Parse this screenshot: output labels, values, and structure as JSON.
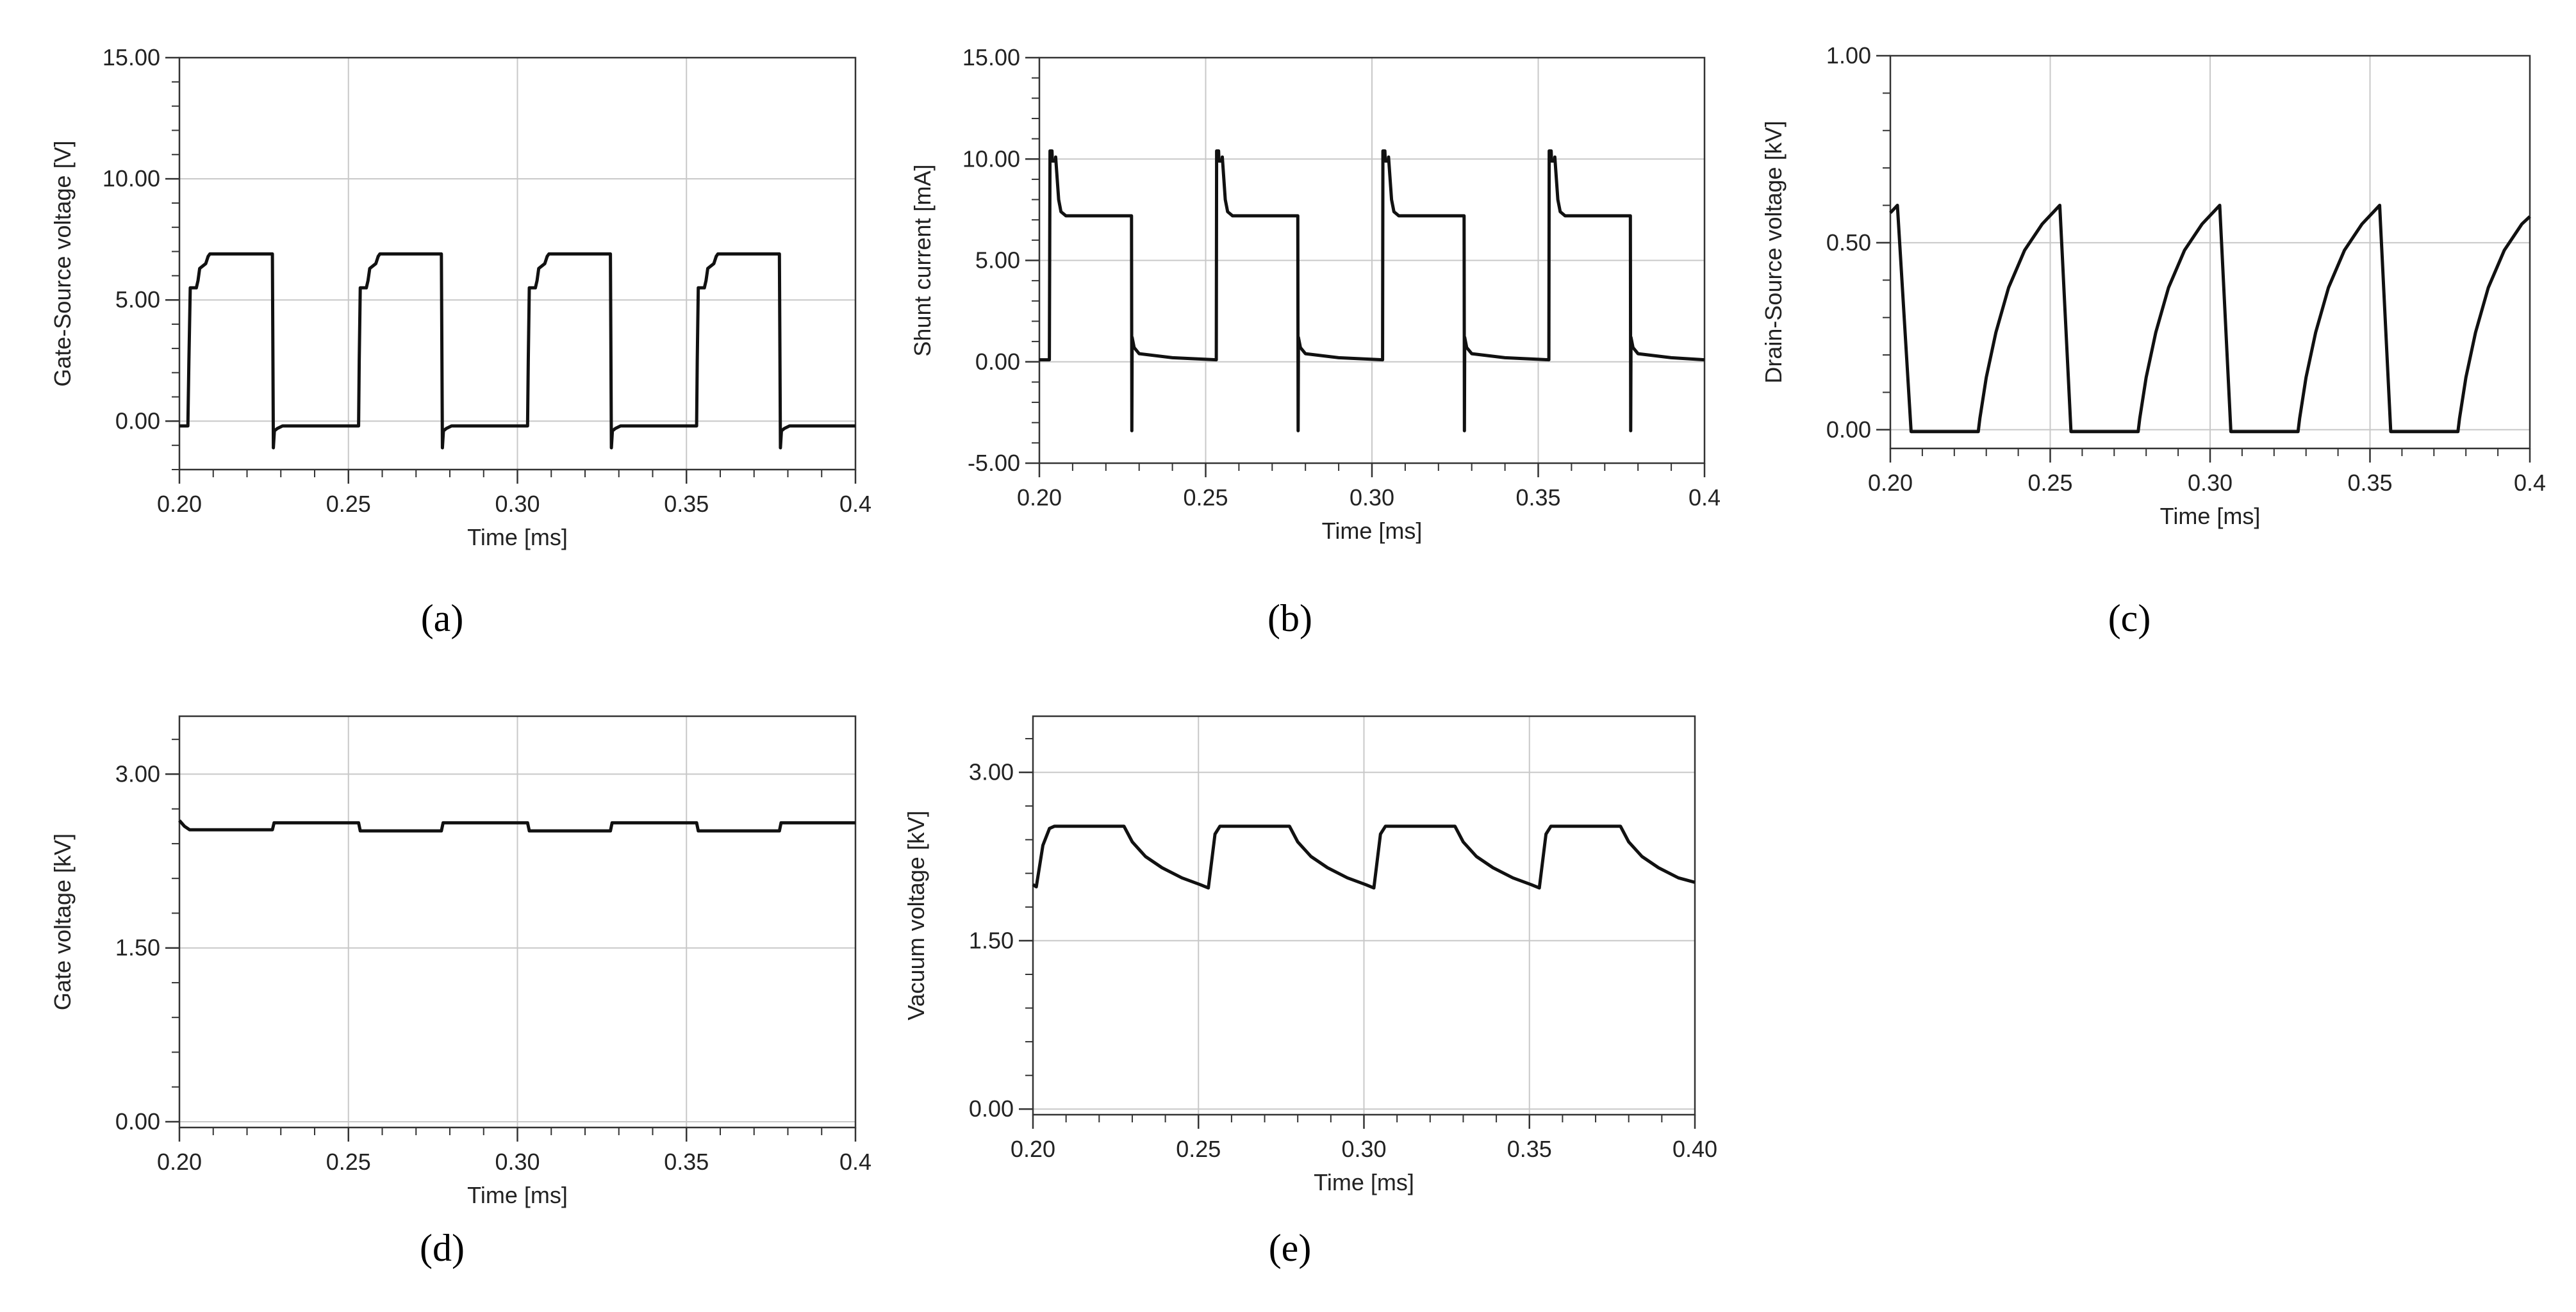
{
  "colors": {
    "trace": "#111111",
    "grid": "#c8c8c8",
    "frame": "#333333",
    "text": "#222222",
    "background": "#ffffff"
  },
  "chart_data": [
    {
      "id": "a",
      "type": "line",
      "panel_label": "(a)",
      "xlabel": "Time [ms]",
      "ylabel": "Gate-Source voltage [V]",
      "xlim": [
        0.2,
        0.4
      ],
      "ylim": [
        -2.0,
        15.0
      ],
      "x_ticks": [
        0.2,
        0.25,
        0.3,
        0.35,
        0.4
      ],
      "x_tick_labels": [
        "0.20",
        "0.25",
        "0.30",
        "0.35",
        "0.4"
      ],
      "y_ticks": [
        0.0,
        5.0,
        10.0,
        15.0
      ],
      "y_tick_labels": [
        "0.00",
        "5.00",
        "10.00",
        "15.00"
      ],
      "series": [
        {
          "name": "Gate-Source voltage",
          "x": [
            0.2,
            0.2025,
            0.2028,
            0.2032,
            0.205,
            0.2055,
            0.206,
            0.2078,
            0.2085,
            0.209,
            0.2275,
            0.2278,
            0.2281,
            0.229,
            0.2305,
            0.253,
            0.2532,
            0.2535,
            0.2553,
            0.2558,
            0.2563,
            0.2581,
            0.2588,
            0.2593,
            0.2775,
            0.2778,
            0.2781,
            0.279,
            0.2805,
            0.303,
            0.3032,
            0.3035,
            0.3053,
            0.3058,
            0.3063,
            0.3081,
            0.3088,
            0.3093,
            0.3275,
            0.3278,
            0.3281,
            0.329,
            0.3305,
            0.353,
            0.3532,
            0.3535,
            0.3553,
            0.3558,
            0.3563,
            0.3581,
            0.3588,
            0.3593,
            0.3775,
            0.3778,
            0.3781,
            0.379,
            0.3805,
            0.4
          ],
          "y": [
            -0.2,
            -0.2,
            2.5,
            5.5,
            5.5,
            5.8,
            6.3,
            6.5,
            6.8,
            6.9,
            6.9,
            -1.1,
            -0.4,
            -0.3,
            -0.2,
            -0.2,
            2.5,
            5.5,
            5.5,
            5.8,
            6.3,
            6.5,
            6.8,
            6.9,
            6.9,
            -1.1,
            -0.4,
            -0.3,
            -0.2,
            -0.2,
            2.5,
            5.5,
            5.5,
            5.8,
            6.3,
            6.5,
            6.8,
            6.9,
            6.9,
            -1.1,
            -0.4,
            -0.3,
            -0.2,
            -0.2,
            2.5,
            5.5,
            5.5,
            5.8,
            6.3,
            6.5,
            6.8,
            6.9,
            6.9,
            -1.1,
            -0.4,
            -0.3,
            -0.2,
            -0.2
          ]
        }
      ]
    },
    {
      "id": "b",
      "type": "line",
      "panel_label": "(b)",
      "xlabel": "Time [ms]",
      "ylabel": "Shunt current [mA]",
      "xlim": [
        0.2,
        0.4
      ],
      "ylim": [
        -5.0,
        15.0
      ],
      "x_ticks": [
        0.2,
        0.25,
        0.3,
        0.35,
        0.4
      ],
      "x_tick_labels": [
        "0.20",
        "0.25",
        "0.30",
        "0.35",
        "0.4"
      ],
      "y_ticks": [
        -5.0,
        0.0,
        5.0,
        10.0,
        15.0
      ],
      "y_tick_labels": [
        "-5.00",
        "0.00",
        "5.00",
        "10.00",
        "15.00"
      ],
      "series": [
        {
          "name": "Shunt current",
          "x": [
            0.2,
            0.203,
            0.2032,
            0.2038,
            0.2039,
            0.2048,
            0.2049,
            0.2058,
            0.2065,
            0.208,
            0.2277,
            0.2278,
            0.2279,
            0.2285,
            0.23,
            0.24,
            0.2532,
            0.2533,
            0.2539,
            0.254,
            0.2549,
            0.255,
            0.2559,
            0.2566,
            0.2581,
            0.2777,
            0.2778,
            0.2779,
            0.2785,
            0.28,
            0.29,
            0.3032,
            0.3033,
            0.3039,
            0.304,
            0.3049,
            0.305,
            0.3059,
            0.3066,
            0.3081,
            0.3277,
            0.3278,
            0.3279,
            0.3285,
            0.33,
            0.34,
            0.3532,
            0.3533,
            0.3539,
            0.354,
            0.3549,
            0.355,
            0.3559,
            0.3566,
            0.3581,
            0.3777,
            0.3778,
            0.3779,
            0.3785,
            0.38,
            0.39,
            0.4
          ],
          "y": [
            0.1,
            0.1,
            10.4,
            10.4,
            9.9,
            9.9,
            10.1,
            8.0,
            7.4,
            7.2,
            7.2,
            -3.4,
            1.2,
            0.7,
            0.4,
            0.2,
            0.1,
            10.4,
            10.4,
            9.9,
            9.9,
            10.1,
            8.0,
            7.4,
            7.2,
            7.2,
            -3.4,
            1.2,
            0.7,
            0.4,
            0.2,
            0.1,
            10.4,
            10.4,
            9.9,
            9.9,
            10.1,
            8.0,
            7.4,
            7.2,
            7.2,
            -3.4,
            1.2,
            0.7,
            0.4,
            0.2,
            0.1,
            10.4,
            10.4,
            9.9,
            9.9,
            10.1,
            8.0,
            7.4,
            7.2,
            7.2,
            -3.4,
            1.2,
            0.7,
            0.4,
            0.2,
            0.1
          ]
        }
      ]
    },
    {
      "id": "c",
      "type": "line",
      "panel_label": "(c)",
      "xlabel": "Time [ms]",
      "ylabel": "Drain-Source voltage [kV]",
      "xlim": [
        0.2,
        0.4
      ],
      "ylim": [
        -0.05,
        1.0
      ],
      "x_ticks": [
        0.2,
        0.25,
        0.3,
        0.35,
        0.4
      ],
      "x_tick_labels": [
        "0.20",
        "0.25",
        "0.30",
        "0.35",
        "0.4"
      ],
      "y_ticks": [
        0.0,
        0.5,
        1.0
      ],
      "y_tick_labels": [
        "0.00",
        "0.50",
        "1.00"
      ],
      "series": [
        {
          "name": "Drain-Source voltage",
          "x": [
            0.2,
            0.2022,
            0.2065,
            0.2275,
            0.228,
            0.23,
            0.233,
            0.237,
            0.242,
            0.2475,
            0.253,
            0.2565,
            0.2775,
            0.278,
            0.28,
            0.283,
            0.287,
            0.292,
            0.2975,
            0.303,
            0.3065,
            0.3275,
            0.328,
            0.33,
            0.333,
            0.337,
            0.342,
            0.3475,
            0.353,
            0.3565,
            0.3775,
            0.378,
            0.38,
            0.383,
            0.387,
            0.392,
            0.3975,
            0.4
          ],
          "y": [
            0.58,
            0.6,
            -0.005,
            -0.005,
            0.03,
            0.14,
            0.26,
            0.38,
            0.48,
            0.55,
            0.6,
            -0.005,
            -0.005,
            0.03,
            0.14,
            0.26,
            0.38,
            0.48,
            0.55,
            0.6,
            -0.005,
            -0.005,
            0.03,
            0.14,
            0.26,
            0.38,
            0.48,
            0.55,
            0.6,
            -0.005,
            -0.005,
            0.03,
            0.14,
            0.26,
            0.38,
            0.48,
            0.55,
            0.57
          ]
        }
      ]
    },
    {
      "id": "d",
      "type": "line",
      "panel_label": "(d)",
      "xlabel": "Time [ms]",
      "ylabel": "Gate voltage [kV]",
      "xlim": [
        0.2,
        0.4
      ],
      "ylim": [
        -0.05,
        3.5
      ],
      "x_ticks": [
        0.2,
        0.25,
        0.3,
        0.35,
        0.4
      ],
      "x_tick_labels": [
        "0.20",
        "0.25",
        "0.30",
        "0.35",
        "0.4"
      ],
      "y_ticks": [
        0.0,
        1.5,
        3.0
      ],
      "y_tick_labels": [
        "0.00",
        "1.50",
        "3.00"
      ],
      "series": [
        {
          "name": "Gate voltage",
          "x": [
            0.2,
            0.2015,
            0.203,
            0.2275,
            0.228,
            0.253,
            0.2535,
            0.2775,
            0.278,
            0.303,
            0.3035,
            0.3275,
            0.328,
            0.353,
            0.3535,
            0.3775,
            0.378,
            0.4
          ],
          "y": [
            2.6,
            2.55,
            2.52,
            2.52,
            2.58,
            2.58,
            2.51,
            2.51,
            2.58,
            2.58,
            2.51,
            2.51,
            2.58,
            2.58,
            2.51,
            2.51,
            2.58,
            2.58
          ]
        }
      ]
    },
    {
      "id": "e",
      "type": "line",
      "panel_label": "(e)",
      "xlabel": "Time [ms]",
      "ylabel": "Vacuum voltage [kV]",
      "xlim": [
        0.2,
        0.4
      ],
      "ylim": [
        -0.05,
        3.5
      ],
      "x_ticks": [
        0.2,
        0.25,
        0.3,
        0.35,
        0.4
      ],
      "x_tick_labels": [
        "0.20",
        "0.25",
        "0.30",
        "0.35",
        "0.40"
      ],
      "y_ticks": [
        0.0,
        1.5,
        3.0
      ],
      "y_tick_labels": [
        "0.00",
        "1.50",
        "3.00"
      ],
      "series": [
        {
          "name": "Vacuum voltage",
          "x": [
            0.2,
            0.201,
            0.203,
            0.205,
            0.2065,
            0.2275,
            0.23,
            0.234,
            0.239,
            0.245,
            0.2505,
            0.253,
            0.255,
            0.2565,
            0.2775,
            0.28,
            0.284,
            0.289,
            0.295,
            0.3005,
            0.303,
            0.305,
            0.3065,
            0.3275,
            0.33,
            0.334,
            0.339,
            0.345,
            0.3505,
            0.353,
            0.355,
            0.3565,
            0.3775,
            0.38,
            0.384,
            0.389,
            0.395,
            0.4
          ],
          "y": [
            2.0,
            1.98,
            2.35,
            2.5,
            2.52,
            2.52,
            2.38,
            2.25,
            2.15,
            2.06,
            2.0,
            1.97,
            2.45,
            2.52,
            2.52,
            2.38,
            2.25,
            2.15,
            2.06,
            2.0,
            1.97,
            2.45,
            2.52,
            2.52,
            2.38,
            2.25,
            2.15,
            2.06,
            2.0,
            1.97,
            2.45,
            2.52,
            2.52,
            2.38,
            2.25,
            2.15,
            2.06,
            2.02
          ]
        }
      ]
    }
  ]
}
